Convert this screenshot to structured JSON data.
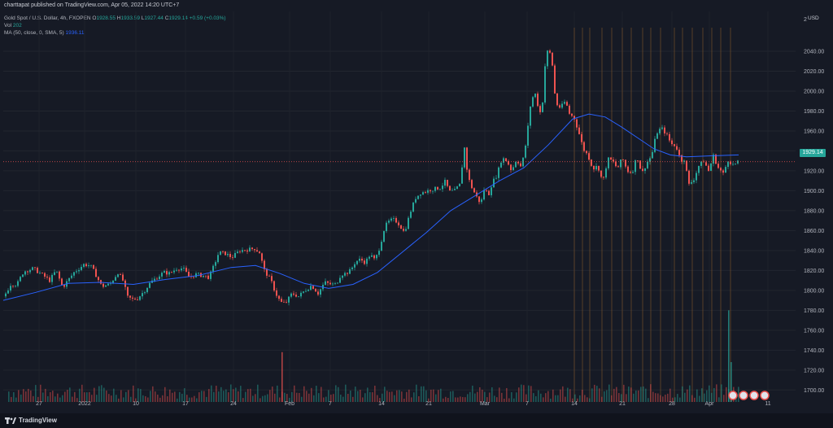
{
  "header": {
    "published": "charttapat published on TradingView.com, Apr 05, 2022 14:20 UTC+7"
  },
  "legend": {
    "symbol": "Gold Spot / U.S. Dollar, 4h, FXOPEN",
    "o_label": "O",
    "o_value": "1928.55",
    "h_label": "H",
    "h_value": "1933.59",
    "l_label": "L",
    "l_value": "1927.44",
    "c_label": "C",
    "c_value": "1929.14",
    "change": "+0.59 (+0.03%)",
    "vol_label": "Vol",
    "vol_value": "202",
    "ma_label": "MA (50, close, 0, SMA, 5)",
    "ma_value": "1936.11"
  },
  "price_axis": {
    "currency": "USD",
    "last_price": "1929.14"
  },
  "footer": {
    "brand": "TradingView"
  },
  "colors": {
    "up": "#26a69a",
    "down": "#ef5350",
    "ma": "#2962ff",
    "background": "#161a25",
    "grid": "#22262f",
    "vlines": "#8a5a2b"
  },
  "chart_data": {
    "type": "candlestick",
    "title": "Gold Spot / U.S. Dollar, 4h, FXOPEN",
    "ylim": [
      1688,
      2080
    ],
    "y_ticks": [
      1700,
      1720,
      1740,
      1760,
      1780,
      1800,
      1820,
      1840,
      1860,
      1880,
      1900,
      1920,
      1940,
      1960,
      1980,
      2000,
      2020,
      2040
    ],
    "top_tick_partial": "2",
    "x_ticks": [
      "27",
      "2022",
      "10",
      "17",
      "24",
      "Feb",
      "7",
      "14",
      "21",
      "Mar",
      "7",
      "14",
      "21",
      "28",
      "Apr",
      "11"
    ],
    "price_path": [
      [
        0,
        1794
      ],
      [
        8,
        1806
      ],
      [
        16,
        1806
      ],
      [
        24,
        1819
      ],
      [
        36,
        1822
      ],
      [
        48,
        1815
      ],
      [
        56,
        1810
      ],
      [
        64,
        1820
      ],
      [
        72,
        1803
      ],
      [
        86,
        1818
      ],
      [
        98,
        1826
      ],
      [
        106,
        1825
      ],
      [
        112,
        1817
      ],
      [
        120,
        1804
      ],
      [
        130,
        1806
      ],
      [
        140,
        1818
      ],
      [
        146,
        1810
      ],
      [
        152,
        1793
      ],
      [
        158,
        1791
      ],
      [
        164,
        1792
      ],
      [
        172,
        1799
      ],
      [
        180,
        1808
      ],
      [
        188,
        1813
      ],
      [
        196,
        1818
      ],
      [
        204,
        1817
      ],
      [
        212,
        1822
      ],
      [
        220,
        1822
      ],
      [
        228,
        1813
      ],
      [
        236,
        1816
      ],
      [
        244,
        1815
      ],
      [
        252,
        1813
      ],
      [
        258,
        1825
      ],
      [
        264,
        1838
      ],
      [
        272,
        1837
      ],
      [
        280,
        1833
      ],
      [
        290,
        1840
      ],
      [
        300,
        1841
      ],
      [
        308,
        1842
      ],
      [
        314,
        1838
      ],
      [
        320,
        1820
      ],
      [
        328,
        1810
      ],
      [
        334,
        1797
      ],
      [
        340,
        1788
      ],
      [
        346,
        1787
      ],
      [
        354,
        1797
      ],
      [
        362,
        1794
      ],
      [
        370,
        1800
      ],
      [
        378,
        1805
      ],
      [
        386,
        1797
      ],
      [
        394,
        1808
      ],
      [
        402,
        1806
      ],
      [
        408,
        1806
      ],
      [
        414,
        1816
      ],
      [
        420,
        1817
      ],
      [
        426,
        1820
      ],
      [
        432,
        1829
      ],
      [
        438,
        1831
      ],
      [
        444,
        1828
      ],
      [
        450,
        1836
      ],
      [
        456,
        1830
      ],
      [
        462,
        1844
      ],
      [
        468,
        1864
      ],
      [
        474,
        1870
      ],
      [
        480,
        1871
      ],
      [
        486,
        1866
      ],
      [
        492,
        1858
      ],
      [
        500,
        1880
      ],
      [
        506,
        1893
      ],
      [
        512,
        1898
      ],
      [
        518,
        1899
      ],
      [
        524,
        1901
      ],
      [
        530,
        1902
      ],
      [
        536,
        1903
      ],
      [
        542,
        1909
      ],
      [
        548,
        1899
      ],
      [
        554,
        1900
      ],
      [
        560,
        1906
      ],
      [
        566,
        1943
      ],
      [
        570,
        1915
      ],
      [
        574,
        1905
      ],
      [
        580,
        1895
      ],
      [
        586,
        1887
      ],
      [
        590,
        1901
      ],
      [
        596,
        1897
      ],
      [
        600,
        1908
      ],
      [
        606,
        1916
      ],
      [
        612,
        1933
      ],
      [
        618,
        1930
      ],
      [
        624,
        1920
      ],
      [
        630,
        1932
      ],
      [
        636,
        1923
      ],
      [
        642,
        1950
      ],
      [
        648,
        1992
      ],
      [
        654,
        1998
      ],
      [
        658,
        1975
      ],
      [
        662,
        1990
      ],
      [
        666,
        2037
      ],
      [
        670,
        2042
      ],
      [
        674,
        2026
      ],
      [
        678,
        1988
      ],
      [
        684,
        1983
      ],
      [
        690,
        1990
      ],
      [
        696,
        1975
      ],
      [
        700,
        1975
      ],
      [
        706,
        1960
      ],
      [
        712,
        1942
      ],
      [
        718,
        1935
      ],
      [
        724,
        1922
      ],
      [
        730,
        1925
      ],
      [
        736,
        1908
      ],
      [
        742,
        1932
      ],
      [
        748,
        1930
      ],
      [
        754,
        1922
      ],
      [
        760,
        1933
      ],
      [
        766,
        1920
      ],
      [
        772,
        1918
      ],
      [
        778,
        1935
      ],
      [
        784,
        1917
      ],
      [
        790,
        1928
      ],
      [
        796,
        1935
      ],
      [
        802,
        1958
      ],
      [
        808,
        1963
      ],
      [
        814,
        1957
      ],
      [
        820,
        1947
      ],
      [
        826,
        1945
      ],
      [
        832,
        1930
      ],
      [
        836,
        1932
      ],
      [
        842,
        1906
      ],
      [
        848,
        1912
      ],
      [
        854,
        1925
      ],
      [
        860,
        1930
      ],
      [
        866,
        1920
      ],
      [
        872,
        1935
      ],
      [
        878,
        1923
      ],
      [
        884,
        1917
      ],
      [
        890,
        1931
      ],
      [
        896,
        1926
      ],
      [
        904,
        1929
      ]
    ],
    "ma_path": [
      [
        0,
        1790
      ],
      [
        40,
        1798
      ],
      [
        80,
        1807
      ],
      [
        120,
        1808
      ],
      [
        160,
        1806
      ],
      [
        200,
        1811
      ],
      [
        240,
        1815
      ],
      [
        280,
        1823
      ],
      [
        310,
        1825
      ],
      [
        340,
        1817
      ],
      [
        370,
        1807
      ],
      [
        400,
        1802
      ],
      [
        430,
        1806
      ],
      [
        460,
        1818
      ],
      [
        490,
        1838
      ],
      [
        520,
        1858
      ],
      [
        550,
        1880
      ],
      [
        580,
        1895
      ],
      [
        610,
        1910
      ],
      [
        640,
        1923
      ],
      [
        670,
        1946
      ],
      [
        700,
        1972
      ],
      [
        720,
        1977
      ],
      [
        740,
        1974
      ],
      [
        760,
        1964
      ],
      [
        780,
        1953
      ],
      [
        800,
        1942
      ],
      [
        820,
        1936
      ],
      [
        840,
        1934
      ],
      [
        870,
        1935
      ],
      [
        904,
        1936
      ]
    ],
    "volume": {
      "baseline_y": 1688,
      "max_visible": 1780,
      "spikes": [
        [
          342,
          1738
        ],
        [
          891,
          1780
        ],
        [
          894,
          1728
        ]
      ]
    },
    "vertical_marker_x": [
      706,
      716,
      725,
      740,
      752,
      765,
      776,
      790,
      800,
      812,
      829,
      839,
      851,
      864,
      875,
      886,
      898
    ]
  }
}
